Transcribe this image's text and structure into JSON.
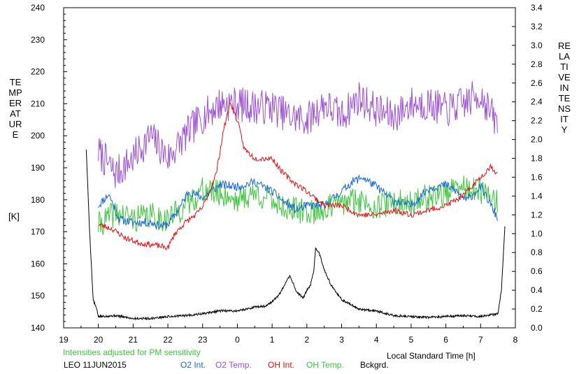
{
  "chart_data": {
    "type": "line",
    "left_axis": {
      "label_letters": "TEMPERATURE",
      "unit": "[K]",
      "ylim": [
        140,
        240
      ],
      "ticks": [
        140,
        150,
        160,
        170,
        180,
        190,
        200,
        210,
        220,
        230,
        240
      ]
    },
    "right_axis": {
      "label_letters": "RELATIVE INTENSITY",
      "ylim": [
        0.0,
        3.4
      ],
      "ticks": [
        "0.0",
        "0.2",
        "0.4",
        "0.6",
        "0.8",
        "1.0",
        "1.2",
        "1.4",
        "1.6",
        "1.8",
        "2.0",
        "2.2",
        "2.4",
        "2.6",
        "2.8",
        "3.0",
        "3.2",
        "3.4"
      ]
    },
    "x_axis": {
      "label": "Local Standard Time [h]",
      "range_hours": [
        19,
        32
      ],
      "tick_labels": [
        "19",
        "20",
        "21",
        "22",
        "23",
        "0",
        "1",
        "2",
        "3",
        "4",
        "5",
        "6",
        "7",
        "8"
      ]
    },
    "note": "Intensities adjusted for PM sensitivity",
    "station_date": "LEO 11JUN2015",
    "grid": false,
    "series": [
      {
        "name": "O2 Int.",
        "color": "#1565d8",
        "axis": "right",
        "seed": 11,
        "noise": 0.045,
        "points": [
          [
            20.0,
            1.3
          ],
          [
            20.3,
            1.42
          ],
          [
            20.6,
            1.15
          ],
          [
            21.0,
            1.12
          ],
          [
            21.5,
            1.12
          ],
          [
            21.8,
            1.08
          ],
          [
            22.0,
            1.1
          ],
          [
            22.3,
            1.25
          ],
          [
            22.6,
            1.45
          ],
          [
            23.0,
            1.38
          ],
          [
            23.5,
            1.52
          ],
          [
            24.0,
            1.5
          ],
          [
            24.5,
            1.55
          ],
          [
            25.0,
            1.45
          ],
          [
            25.3,
            1.35
          ],
          [
            25.7,
            1.25
          ],
          [
            26.0,
            1.3
          ],
          [
            26.5,
            1.3
          ],
          [
            27.0,
            1.45
          ],
          [
            27.3,
            1.55
          ],
          [
            27.6,
            1.6
          ],
          [
            28.0,
            1.5
          ],
          [
            28.5,
            1.35
          ],
          [
            29.0,
            1.3
          ],
          [
            29.5,
            1.48
          ],
          [
            30.0,
            1.52
          ],
          [
            30.3,
            1.45
          ],
          [
            30.6,
            1.35
          ],
          [
            31.0,
            1.5
          ],
          [
            31.3,
            1.3
          ],
          [
            31.5,
            1.15
          ]
        ]
      },
      {
        "name": "O2 Temp.",
        "color": "#9b4fd1",
        "axis": "left",
        "seed": 7,
        "noise": 5.5,
        "points": [
          [
            20.0,
            195
          ],
          [
            20.5,
            188
          ],
          [
            21.0,
            193
          ],
          [
            21.5,
            200
          ],
          [
            22.0,
            193
          ],
          [
            22.5,
            200
          ],
          [
            23.0,
            206
          ],
          [
            23.5,
            210
          ],
          [
            24.0,
            210
          ],
          [
            24.5,
            209
          ],
          [
            25.0,
            209
          ],
          [
            25.5,
            206
          ],
          [
            26.0,
            205
          ],
          [
            26.5,
            210
          ],
          [
            27.0,
            206
          ],
          [
            27.5,
            212
          ],
          [
            28.0,
            208
          ],
          [
            28.5,
            206
          ],
          [
            29.0,
            210
          ],
          [
            29.5,
            210
          ],
          [
            30.0,
            208
          ],
          [
            30.5,
            210
          ],
          [
            31.0,
            213
          ],
          [
            31.5,
            203
          ]
        ]
      },
      {
        "name": "OH Int.",
        "color": "#e01010",
        "axis": "right",
        "seed": 23,
        "noise": 0.03,
        "points": [
          [
            20.0,
            1.1
          ],
          [
            20.4,
            1.05
          ],
          [
            20.8,
            0.95
          ],
          [
            21.2,
            0.9
          ],
          [
            21.6,
            0.88
          ],
          [
            22.0,
            0.85
          ],
          [
            22.2,
            1.0
          ],
          [
            22.5,
            1.12
          ],
          [
            22.8,
            1.2
          ],
          [
            23.0,
            1.28
          ],
          [
            23.2,
            1.45
          ],
          [
            23.4,
            1.65
          ],
          [
            23.6,
            2.1
          ],
          [
            23.8,
            2.4
          ],
          [
            24.0,
            2.2
          ],
          [
            24.2,
            1.9
          ],
          [
            24.5,
            1.8
          ],
          [
            25.0,
            1.8
          ],
          [
            25.3,
            1.65
          ],
          [
            25.6,
            1.55
          ],
          [
            26.0,
            1.45
          ],
          [
            26.5,
            1.3
          ],
          [
            27.0,
            1.3
          ],
          [
            27.5,
            1.2
          ],
          [
            28.0,
            1.2
          ],
          [
            28.5,
            1.25
          ],
          [
            29.0,
            1.2
          ],
          [
            29.5,
            1.25
          ],
          [
            30.0,
            1.3
          ],
          [
            30.5,
            1.4
          ],
          [
            31.0,
            1.6
          ],
          [
            31.3,
            1.72
          ],
          [
            31.5,
            1.62
          ]
        ]
      },
      {
        "name": "OH Temp.",
        "color": "#3cc43c",
        "axis": "left",
        "seed": 41,
        "noise": 4.2,
        "points": [
          [
            20.0,
            172
          ],
          [
            20.5,
            176
          ],
          [
            21.0,
            174
          ],
          [
            21.5,
            175
          ],
          [
            22.0,
            174
          ],
          [
            22.5,
            178
          ],
          [
            23.0,
            183
          ],
          [
            23.5,
            182
          ],
          [
            24.0,
            180
          ],
          [
            24.5,
            182
          ],
          [
            25.0,
            180
          ],
          [
            25.5,
            177
          ],
          [
            26.0,
            176
          ],
          [
            26.5,
            177
          ],
          [
            27.0,
            179
          ],
          [
            27.5,
            180
          ],
          [
            28.0,
            178
          ],
          [
            28.5,
            179
          ],
          [
            29.0,
            179
          ],
          [
            29.5,
            181
          ],
          [
            30.0,
            182
          ],
          [
            30.5,
            184
          ],
          [
            31.0,
            182
          ],
          [
            31.5,
            180
          ]
        ]
      },
      {
        "name": "Bckgrd.",
        "color": "#000000",
        "axis": "right",
        "seed": 5,
        "noise": 0.012,
        "points": [
          [
            19.65,
            1.9
          ],
          [
            19.75,
            1.0
          ],
          [
            19.85,
            0.3
          ],
          [
            19.95,
            0.2
          ],
          [
            20.0,
            0.12
          ],
          [
            20.5,
            0.13
          ],
          [
            21.0,
            0.1
          ],
          [
            21.5,
            0.1
          ],
          [
            22.0,
            0.12
          ],
          [
            22.5,
            0.13
          ],
          [
            23.0,
            0.15
          ],
          [
            23.5,
            0.18
          ],
          [
            24.0,
            0.18
          ],
          [
            24.5,
            0.22
          ],
          [
            24.8,
            0.23
          ],
          [
            25.0,
            0.28
          ],
          [
            25.2,
            0.35
          ],
          [
            25.4,
            0.48
          ],
          [
            25.5,
            0.55
          ],
          [
            25.6,
            0.48
          ],
          [
            25.7,
            0.38
          ],
          [
            25.8,
            0.35
          ],
          [
            25.9,
            0.32
          ],
          [
            26.0,
            0.4
          ],
          [
            26.1,
            0.45
          ],
          [
            26.2,
            0.6
          ],
          [
            26.25,
            0.85
          ],
          [
            26.35,
            0.8
          ],
          [
            26.5,
            0.62
          ],
          [
            26.7,
            0.45
          ],
          [
            27.0,
            0.3
          ],
          [
            27.5,
            0.2
          ],
          [
            28.0,
            0.18
          ],
          [
            28.5,
            0.13
          ],
          [
            29.0,
            0.12
          ],
          [
            29.5,
            0.11
          ],
          [
            30.0,
            0.12
          ],
          [
            30.5,
            0.13
          ],
          [
            31.0,
            0.12
          ],
          [
            31.5,
            0.15
          ],
          [
            31.6,
            0.4
          ],
          [
            31.7,
            1.1
          ]
        ]
      }
    ]
  }
}
